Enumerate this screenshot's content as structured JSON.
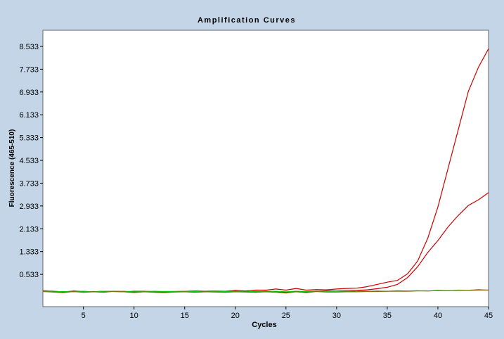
{
  "chart_data": {
    "type": "line",
    "title": "Amplification Curves",
    "xlabel": "Cycles",
    "ylabel": "Fluorescence (465-510)",
    "xlim": [
      1,
      45
    ],
    "ylim": [
      -0.6,
      9.1
    ],
    "xticks": [
      5,
      10,
      15,
      20,
      25,
      30,
      35,
      40,
      45
    ],
    "yticks": [
      0.533,
      1.333,
      2.133,
      2.933,
      3.733,
      4.533,
      5.333,
      6.133,
      6.933,
      7.733,
      8.533
    ],
    "ytick_labels": [
      "0.533",
      "1.333",
      "2.133",
      "2.933",
      "3.733",
      "4.533",
      "5.333",
      "6.133",
      "6.933",
      "7.733",
      "8.533"
    ],
    "grid": false,
    "legend": "none",
    "background": "#c3d5e6",
    "plot_background": "#ffffff",
    "series": [
      {
        "color": "#cc0000",
        "x": [
          1,
          2,
          3,
          4,
          5,
          6,
          7,
          8,
          9,
          10,
          11,
          12,
          13,
          14,
          15,
          16,
          17,
          18,
          19,
          20,
          21,
          22,
          23,
          24,
          25,
          26,
          27,
          28,
          29,
          30,
          31,
          32,
          33,
          34,
          35,
          36,
          37,
          38,
          39,
          40,
          41,
          42,
          43,
          44,
          45
        ],
        "y": [
          -0.04,
          -0.07,
          -0.1,
          -0.05,
          -0.07,
          -0.08,
          -0.06,
          -0.07,
          -0.08,
          -0.06,
          -0.06,
          -0.08,
          -0.07,
          -0.07,
          -0.06,
          -0.05,
          -0.06,
          -0.05,
          -0.06,
          -0.03,
          -0.05,
          -0.02,
          -0.02,
          0.02,
          -0.02,
          0.04,
          -0.02,
          0.0,
          -0.01,
          0.02,
          0.04,
          0.05,
          0.1,
          0.18,
          0.26,
          0.32,
          0.55,
          1.0,
          1.8,
          2.9,
          4.25,
          5.6,
          6.95,
          7.8,
          8.45
        ]
      },
      {
        "color": "#cc0000",
        "x": [
          1,
          2,
          3,
          4,
          5,
          6,
          7,
          8,
          9,
          10,
          11,
          12,
          13,
          14,
          15,
          16,
          17,
          18,
          19,
          20,
          21,
          22,
          23,
          24,
          25,
          26,
          27,
          28,
          29,
          30,
          31,
          32,
          33,
          34,
          35,
          36,
          37,
          38,
          39,
          40,
          41,
          42,
          43,
          44,
          45
        ],
        "y": [
          -0.05,
          -0.06,
          -0.08,
          -0.06,
          -0.08,
          -0.07,
          -0.09,
          -0.06,
          -0.07,
          -0.09,
          -0.07,
          -0.08,
          -0.1,
          -0.08,
          -0.07,
          -0.09,
          -0.08,
          -0.07,
          -0.08,
          -0.07,
          -0.07,
          -0.08,
          -0.06,
          -0.07,
          -0.1,
          -0.06,
          -0.09,
          -0.06,
          -0.04,
          -0.05,
          -0.04,
          -0.03,
          -0.01,
          0.03,
          0.08,
          0.18,
          0.42,
          0.8,
          1.3,
          1.72,
          2.2,
          2.6,
          2.95,
          3.15,
          3.4
        ]
      },
      {
        "color": "#00cc00",
        "x": [
          1,
          2,
          3,
          4,
          5,
          6,
          7,
          8,
          9,
          10,
          11,
          12,
          13,
          14,
          15,
          16,
          17,
          18,
          19,
          20,
          21,
          22,
          23,
          24,
          25,
          26,
          27,
          28,
          29,
          30,
          31,
          32,
          33,
          34,
          35,
          36,
          37,
          38,
          39,
          40,
          41,
          42,
          43,
          44,
          45
        ],
        "y": [
          -0.06,
          -0.08,
          -0.07,
          -0.08,
          -0.06,
          -0.08,
          -0.06,
          -0.07,
          -0.06,
          -0.08,
          -0.07,
          -0.06,
          -0.07,
          -0.07,
          -0.06,
          -0.07,
          -0.08,
          -0.06,
          -0.07,
          -0.06,
          -0.08,
          -0.06,
          -0.07,
          -0.06,
          -0.08,
          -0.06,
          -0.07,
          -0.05,
          -0.06,
          -0.06,
          -0.07,
          -0.05,
          -0.06,
          -0.05,
          -0.06,
          -0.04,
          -0.05,
          -0.04,
          -0.05,
          -0.03,
          -0.04,
          -0.02,
          -0.03,
          0.0,
          -0.02
        ]
      },
      {
        "color": "#8a6a10",
        "x": [
          1,
          2,
          3,
          4,
          5,
          6,
          7,
          8,
          9,
          10,
          11,
          12,
          13,
          14,
          15,
          16,
          17,
          18,
          19,
          20,
          21,
          22,
          23,
          24,
          25,
          26,
          27,
          28,
          29,
          30,
          31,
          32,
          33,
          34,
          35,
          36,
          37,
          38,
          39,
          40,
          41,
          42,
          43,
          44,
          45
        ],
        "y": [
          -0.07,
          -0.09,
          -0.11,
          -0.07,
          -0.1,
          -0.08,
          -0.1,
          -0.06,
          -0.08,
          -0.11,
          -0.08,
          -0.1,
          -0.11,
          -0.09,
          -0.08,
          -0.1,
          -0.08,
          -0.09,
          -0.1,
          -0.08,
          -0.09,
          -0.1,
          -0.08,
          -0.1,
          -0.12,
          -0.08,
          -0.11,
          -0.07,
          -0.09,
          -0.09,
          -0.08,
          -0.08,
          -0.07,
          -0.07,
          -0.06,
          -0.06,
          -0.06,
          -0.05,
          -0.05,
          -0.04,
          -0.04,
          -0.03,
          -0.03,
          -0.02,
          -0.02
        ]
      }
    ]
  }
}
